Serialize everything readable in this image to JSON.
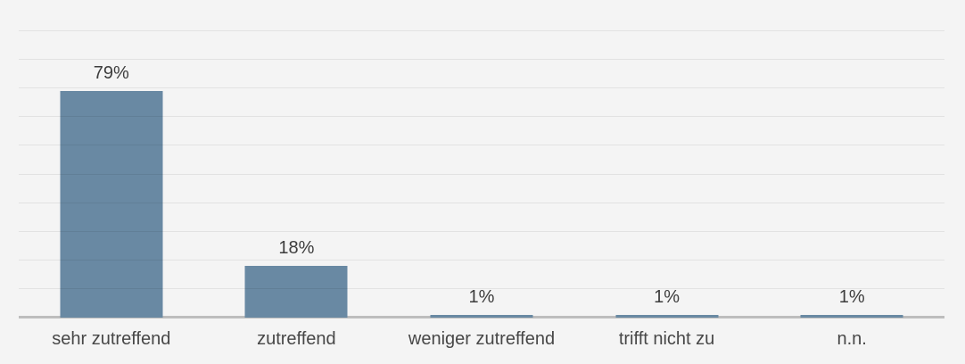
{
  "chart_data": {
    "type": "bar",
    "title": "",
    "categories": [
      "sehr zutreffend",
      "zutreffend",
      "weniger zutreffend",
      "trifft nicht zu",
      "n.n."
    ],
    "values": [
      79,
      18,
      1,
      1,
      1
    ],
    "value_labels": [
      "79%",
      "18%",
      "1%",
      "1%",
      "1%"
    ],
    "xlabel": "",
    "ylabel": "",
    "ylim": [
      0,
      100
    ],
    "grid_step": 10,
    "grid": "horizontal",
    "legend": "none",
    "colors": {
      "bar": "#6989a3",
      "background": "#f4f4f4",
      "gridline": "rgba(0,0,0,0.07)",
      "axis_line": "#bdbdbd",
      "value_label_text": "#3d3d3d",
      "category_label_text": "#474747"
    }
  }
}
